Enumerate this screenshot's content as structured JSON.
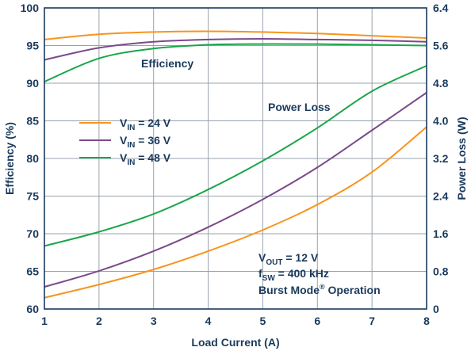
{
  "chart_data": {
    "type": "line",
    "xlabel": "Load Current (A)",
    "ylabel_left": "Efficiency (%)",
    "ylabel_right": "Power Loss (W)",
    "xlim": [
      1,
      8
    ],
    "ylim_left": [
      60,
      100
    ],
    "ylim_right": [
      0,
      6.4
    ],
    "x_ticks": [
      "1",
      "2",
      "3",
      "4",
      "5",
      "6",
      "7",
      "8"
    ],
    "y_ticks_left": [
      "100",
      "95",
      "90",
      "85",
      "80",
      "75",
      "70",
      "65",
      "60"
    ],
    "y_ticks_right": [
      "6.4",
      "5.6",
      "4.8",
      "4.0",
      "3.2",
      "2.4",
      "1.6",
      "0.8",
      "0"
    ],
    "grid": true,
    "annotations": {
      "efficiency_label": "Efficiency",
      "power_loss_label": "Power Loss",
      "conditions": {
        "vout_main": "V",
        "vout_sub": "OUT",
        "vout_value": " = 12 V",
        "fsw_main": "f",
        "fsw_sub": "SW",
        "fsw_value": " = 400 kHz",
        "mode_main": "Burst Mode",
        "mode_sup": "®",
        "mode_tail": " Operation"
      }
    },
    "legend": {
      "placement": "center-left",
      "entries": [
        {
          "main": "V",
          "sub": "IN",
          "value": " = 24 V"
        },
        {
          "main": "V",
          "sub": "IN",
          "value": " = 36 V"
        },
        {
          "main": "V",
          "sub": "IN",
          "value": " = 48 V"
        }
      ]
    },
    "series": [
      {
        "color": "#f7941d",
        "axis": "left",
        "x": [
          1,
          2,
          3,
          4,
          5,
          6,
          7,
          8
        ],
        "y": [
          95.8,
          96.5,
          96.8,
          96.9,
          96.8,
          96.6,
          96.3,
          96.0
        ]
      },
      {
        "color": "#7b4a8b",
        "axis": "left",
        "x": [
          1,
          2,
          3,
          4,
          5,
          6,
          7,
          8
        ],
        "y": [
          93.1,
          94.7,
          95.5,
          95.8,
          95.9,
          95.8,
          95.7,
          95.5
        ]
      },
      {
        "color": "#1aa64a",
        "axis": "left",
        "x": [
          1,
          2,
          3,
          4,
          5,
          6,
          7,
          8
        ],
        "y": [
          90.2,
          93.3,
          94.6,
          95.1,
          95.2,
          95.2,
          95.1,
          95.0
        ]
      },
      {
        "color": "#f7941d",
        "axis": "right",
        "x": [
          1,
          2,
          3,
          4,
          5,
          6,
          7,
          8
        ],
        "y": [
          0.24,
          0.52,
          0.84,
          1.23,
          1.68,
          2.22,
          2.91,
          3.87
        ]
      },
      {
        "color": "#7b4a8b",
        "axis": "right",
        "x": [
          1,
          2,
          3,
          4,
          5,
          6,
          7,
          8
        ],
        "y": [
          0.47,
          0.81,
          1.23,
          1.74,
          2.33,
          3.01,
          3.8,
          4.6
        ]
      },
      {
        "color": "#1aa64a",
        "axis": "right",
        "x": [
          1,
          2,
          3,
          4,
          5,
          6,
          7,
          8
        ],
        "y": [
          1.34,
          1.64,
          2.02,
          2.54,
          3.15,
          3.85,
          4.63,
          5.17
        ]
      }
    ]
  }
}
